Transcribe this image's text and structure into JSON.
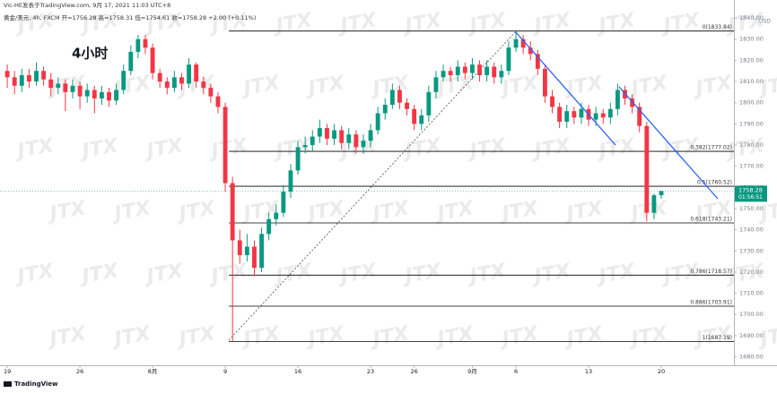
{
  "chart_data": {
    "type": "candlestick",
    "header": "Vic-HE发表于TradingView.com, 9月 17, 2021 11:03 UTC+8",
    "subtitle": "黄金/美元, 4h, FXCM  开=1756.28  高=1758.31  低=1754.61  收=1758.28  +2.00 (+0.11%)",
    "title": "4小时",
    "currency": "USD",
    "watermark": "JTX",
    "footer": "TradingView",
    "last_price": {
      "value": 1758.28,
      "label": "1758.28"
    },
    "countdown": "01:56:51",
    "up_color": "#089981",
    "down_color": "#f23645",
    "xlim": [
      -1,
      100
    ],
    "ylim": [
      1676,
      1843
    ],
    "xticks": [
      {
        "value": 0,
        "label": "19"
      },
      {
        "value": 10,
        "label": "26"
      },
      {
        "value": 20,
        "label": "8月"
      },
      {
        "value": 30,
        "label": "9"
      },
      {
        "value": 40,
        "label": "16"
      },
      {
        "value": 50,
        "label": "23"
      },
      {
        "value": 56,
        "label": "26"
      },
      {
        "value": 64,
        "label": "9月"
      },
      {
        "value": 70,
        "label": "6"
      },
      {
        "value": 80,
        "label": "13"
      },
      {
        "value": 90,
        "label": "20"
      }
    ],
    "yticks": [
      {
        "value": 1680,
        "label": "1680.00"
      },
      {
        "value": 1690,
        "label": "1690.00"
      },
      {
        "value": 1700,
        "label": "1700.00"
      },
      {
        "value": 1710,
        "label": "1710.00"
      },
      {
        "value": 1720,
        "label": "1720.00"
      },
      {
        "value": 1730,
        "label": "1730.00"
      },
      {
        "value": 1740,
        "label": "1740.00"
      },
      {
        "value": 1750,
        "label": "1750.00"
      },
      {
        "value": 1760,
        "label": "1760.00"
      },
      {
        "value": 1770,
        "label": "1770.00"
      },
      {
        "value": 1780,
        "label": "1780.00"
      },
      {
        "value": 1790,
        "label": "1790.00"
      },
      {
        "value": 1800,
        "label": "1800.00"
      },
      {
        "value": 1810,
        "label": "1810.00"
      },
      {
        "value": 1820,
        "label": "1820.00"
      },
      {
        "value": 1830,
        "label": "1830.00"
      },
      {
        "value": 1840,
        "label": "1840.00"
      }
    ],
    "fib_levels": [
      {
        "value": 1833.84,
        "label": "0(1833.84)"
      },
      {
        "value": 1777.02,
        "label": "0.382(1777.02)"
      },
      {
        "value": 1760.52,
        "label": "0.5(1760.52)"
      },
      {
        "value": 1743.21,
        "label": "0.618(1743.21)"
      },
      {
        "value": 1718.57,
        "label": "0.786(1718.57)"
      },
      {
        "value": 1703.91,
        "label": "0.886(1703.91)"
      },
      {
        "value": 1687.19,
        "label": "1(1687.19)"
      }
    ],
    "open": [
      1815,
      1812,
      1808,
      1813,
      1810,
      1815,
      1811,
      1807,
      1809,
      1805,
      1808,
      1803,
      1806,
      1802,
      1805,
      1801,
      1806,
      1815,
      1824,
      1830,
      1826,
      1814,
      1810,
      1807,
      1812,
      1809,
      1818,
      1810,
      1807,
      1803,
      1798,
      1762,
      1735,
      1728,
      1732,
      1722,
      1738,
      1745,
      1748,
      1758,
      1768,
      1779,
      1780,
      1784,
      1788,
      1783,
      1787,
      1781,
      1785,
      1779,
      1782,
      1787,
      1795,
      1799,
      1806,
      1800,
      1797,
      1790,
      1794,
      1805,
      1812,
      1815,
      1813,
      1817,
      1814,
      1818,
      1813,
      1817,
      1812,
      1815,
      1826,
      1830,
      1826,
      1823,
      1816,
      1803,
      1798,
      1791,
      1796,
      1793,
      1797,
      1792,
      1795,
      1793,
      1797,
      1806,
      1802,
      1798,
      1789,
      1748,
      1756.28
    ],
    "high": [
      1818,
      1815,
      1816,
      1816,
      1819,
      1817,
      1814,
      1812,
      1811,
      1811,
      1810,
      1809,
      1808,
      1808,
      1807,
      1809,
      1818,
      1827,
      1832,
      1832,
      1828,
      1816,
      1812,
      1815,
      1814,
      1821,
      1819,
      1812,
      1809,
      1805,
      1800,
      1765,
      1740,
      1738,
      1735,
      1741,
      1748,
      1752,
      1761,
      1771,
      1782,
      1784,
      1787,
      1792,
      1790,
      1790,
      1789,
      1788,
      1787,
      1785,
      1790,
      1798,
      1802,
      1809,
      1808,
      1802,
      1799,
      1797,
      1808,
      1815,
      1818,
      1817,
      1820,
      1819,
      1821,
      1820,
      1820,
      1819,
      1818,
      1829,
      1833.84,
      1832,
      1829,
      1825,
      1818,
      1806,
      1800,
      1799,
      1798,
      1800,
      1799,
      1798,
      1797,
      1800,
      1809,
      1808,
      1804,
      1800,
      1791,
      1757,
      1758.31
    ],
    "low": [
      1807,
      1804,
      1805,
      1807,
      1808,
      1808,
      1803,
      1804,
      1796,
      1802,
      1797,
      1800,
      1795,
      1799,
      1798,
      1799,
      1804,
      1813,
      1821,
      1823,
      1811,
      1807,
      1804,
      1805,
      1806,
      1807,
      1807,
      1804,
      1800,
      1795,
      1758,
      1687.19,
      1724,
      1725,
      1718,
      1720,
      1735,
      1742,
      1746,
      1755,
      1766,
      1776,
      1777,
      1781,
      1780,
      1780,
      1778,
      1778,
      1776,
      1776,
      1779,
      1785,
      1792,
      1797,
      1797,
      1794,
      1787,
      1787,
      1791,
      1802,
      1810,
      1810,
      1810,
      1811,
      1811,
      1810,
      1810,
      1809,
      1809,
      1813,
      1824,
      1823,
      1820,
      1813,
      1800,
      1795,
      1788,
      1788,
      1790,
      1790,
      1789,
      1789,
      1790,
      1790,
      1794,
      1799,
      1795,
      1786,
      1744,
      1745,
      1754.61
    ],
    "close": [
      1812,
      1808,
      1813,
      1810,
      1815,
      1811,
      1807,
      1809,
      1805,
      1808,
      1803,
      1806,
      1802,
      1805,
      1801,
      1806,
      1815,
      1824,
      1830,
      1826,
      1814,
      1810,
      1807,
      1812,
      1809,
      1818,
      1810,
      1807,
      1803,
      1798,
      1762,
      1735,
      1728,
      1732,
      1722,
      1738,
      1745,
      1748,
      1758,
      1768,
      1779,
      1780,
      1784,
      1788,
      1783,
      1787,
      1781,
      1785,
      1779,
      1782,
      1787,
      1795,
      1799,
      1806,
      1800,
      1797,
      1790,
      1794,
      1805,
      1812,
      1815,
      1813,
      1817,
      1814,
      1818,
      1813,
      1817,
      1812,
      1815,
      1826,
      1830,
      1826,
      1823,
      1816,
      1803,
      1798,
      1791,
      1796,
      1793,
      1797,
      1792,
      1795,
      1793,
      1797,
      1806,
      1802,
      1798,
      1789,
      1748,
      1756.28,
      1758.28
    ]
  }
}
